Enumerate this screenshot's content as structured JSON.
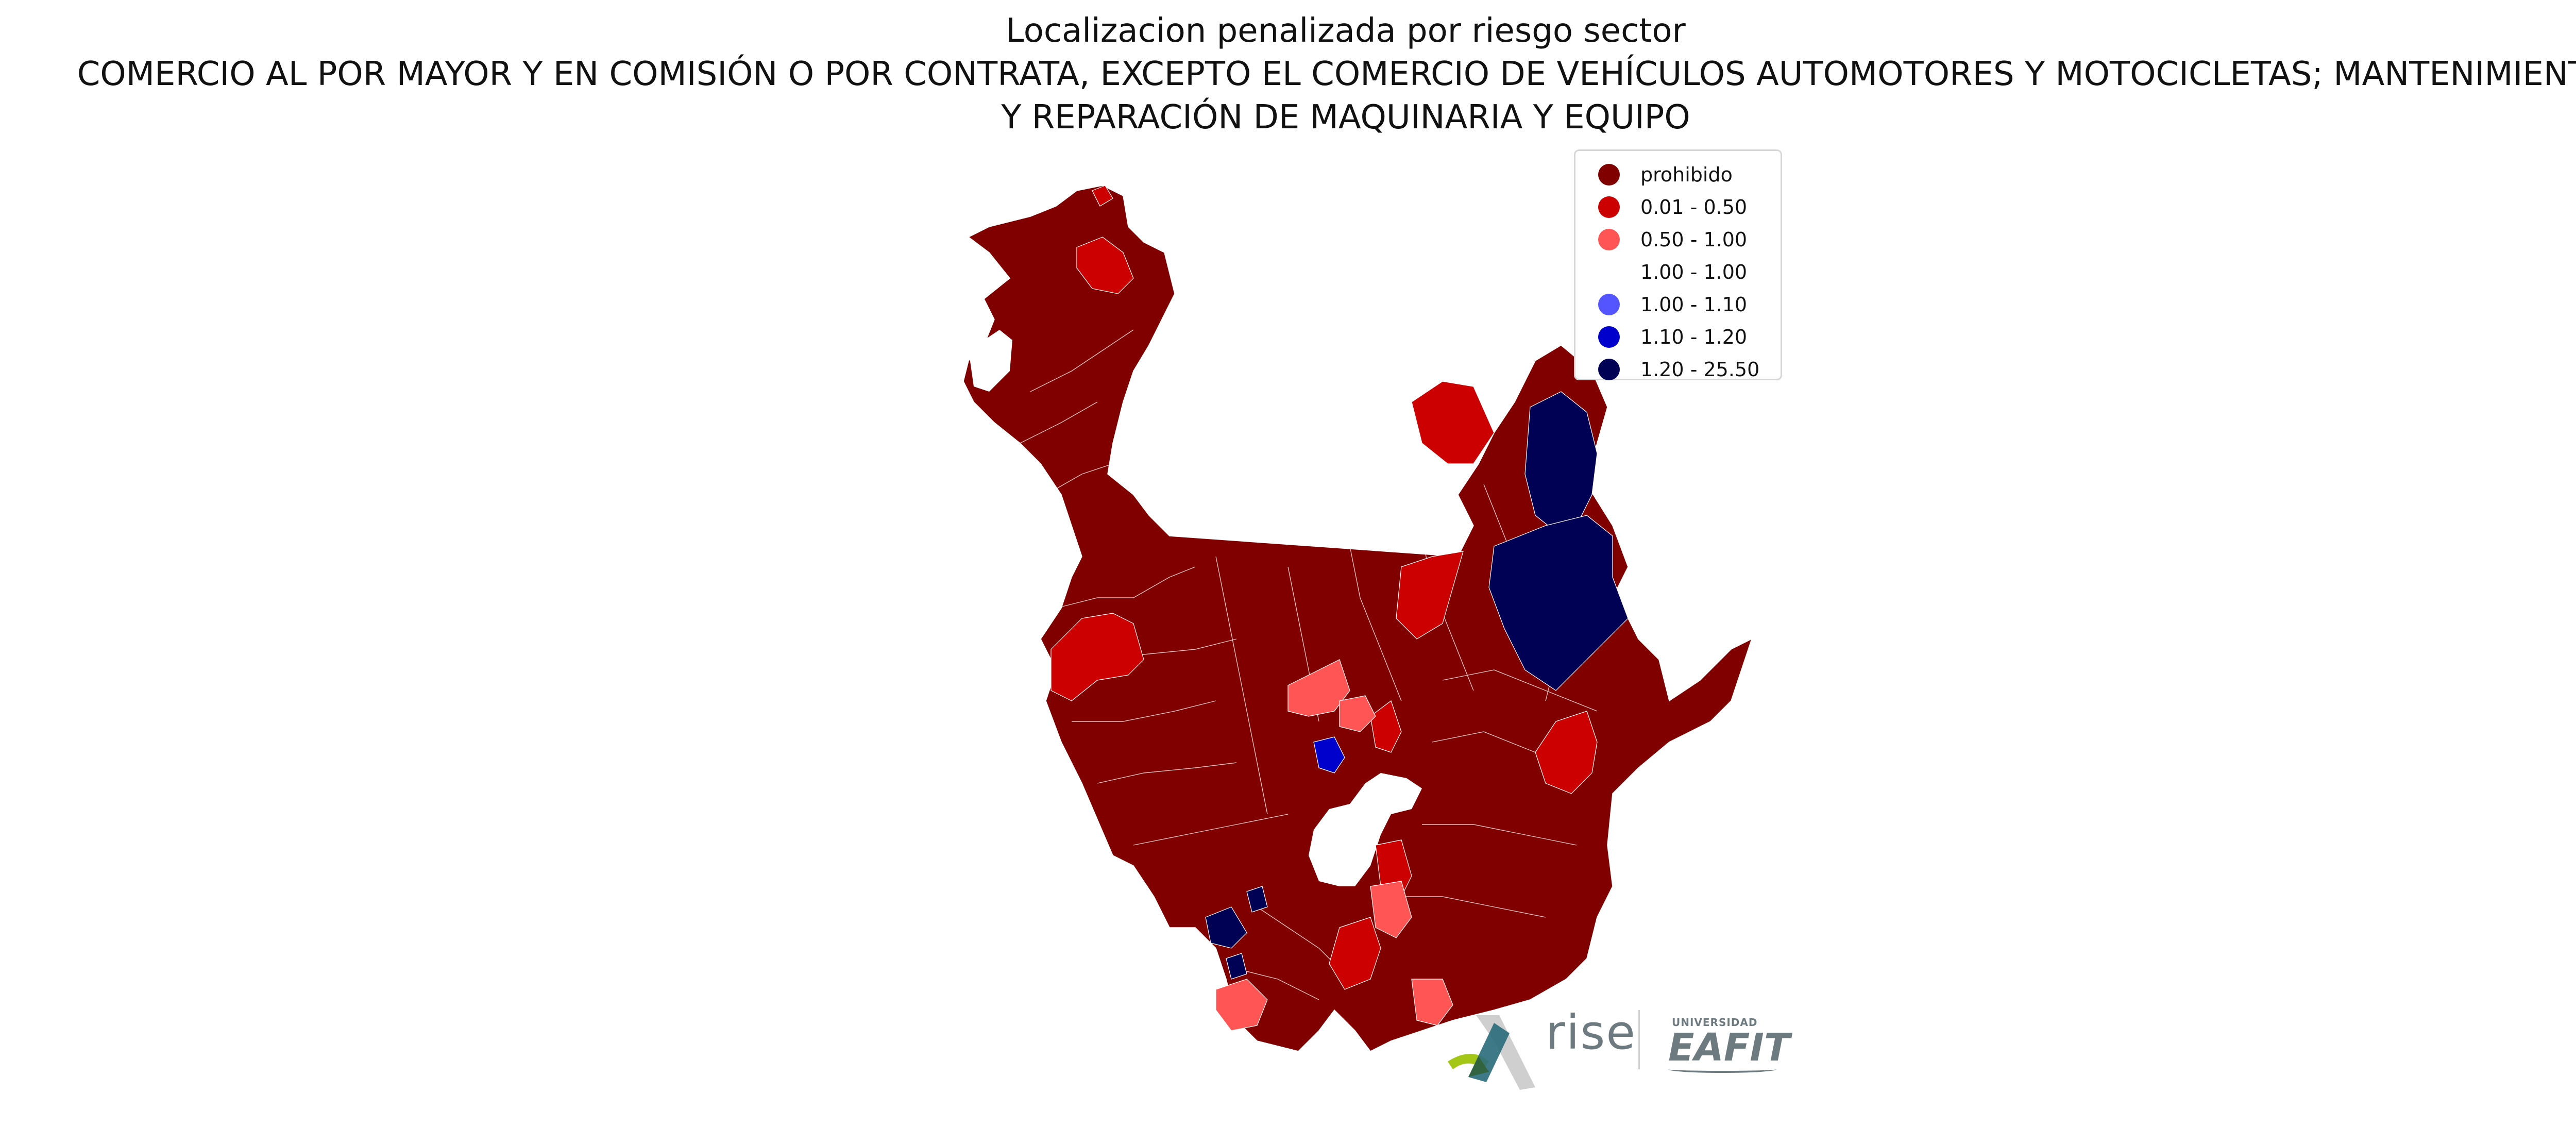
{
  "title": {
    "line1": "Localizacion penalizada por riesgo sector",
    "line2": "COMERCIO AL POR MAYOR Y EN COMISIÓN O POR CONTRATA, EXCEPTO EL COMERCIO DE VEHÍCULOS AUTOMOTORES Y MOTOCICLETAS; MANTENIMIENTO",
    "line3": "Y REPARACIÓN DE MAQUINARIA Y EQUIPO"
  },
  "legend": {
    "placement": "top-right",
    "items": [
      {
        "label": "prohibido",
        "color": "#800000"
      },
      {
        "label": "0.01 - 0.50",
        "color": "#cc0000"
      },
      {
        "label": "0.50 - 1.00",
        "color": "#ff5555"
      },
      {
        "label": "1.00 - 1.00",
        "color": "#ffffff"
      },
      {
        "label": "1.00 - 1.10",
        "color": "#5555ff"
      },
      {
        "label": "1.10 - 1.20",
        "color": "#0000cc"
      },
      {
        "label": "1.20 - 25.50",
        "color": "#000055"
      }
    ]
  },
  "map": {
    "base_color": "#800000",
    "border_color": "#ffffff"
  },
  "logos": {
    "rise_text": "rise",
    "university_small": "UNIVERSIDAD",
    "university_big": "EAFIT"
  }
}
